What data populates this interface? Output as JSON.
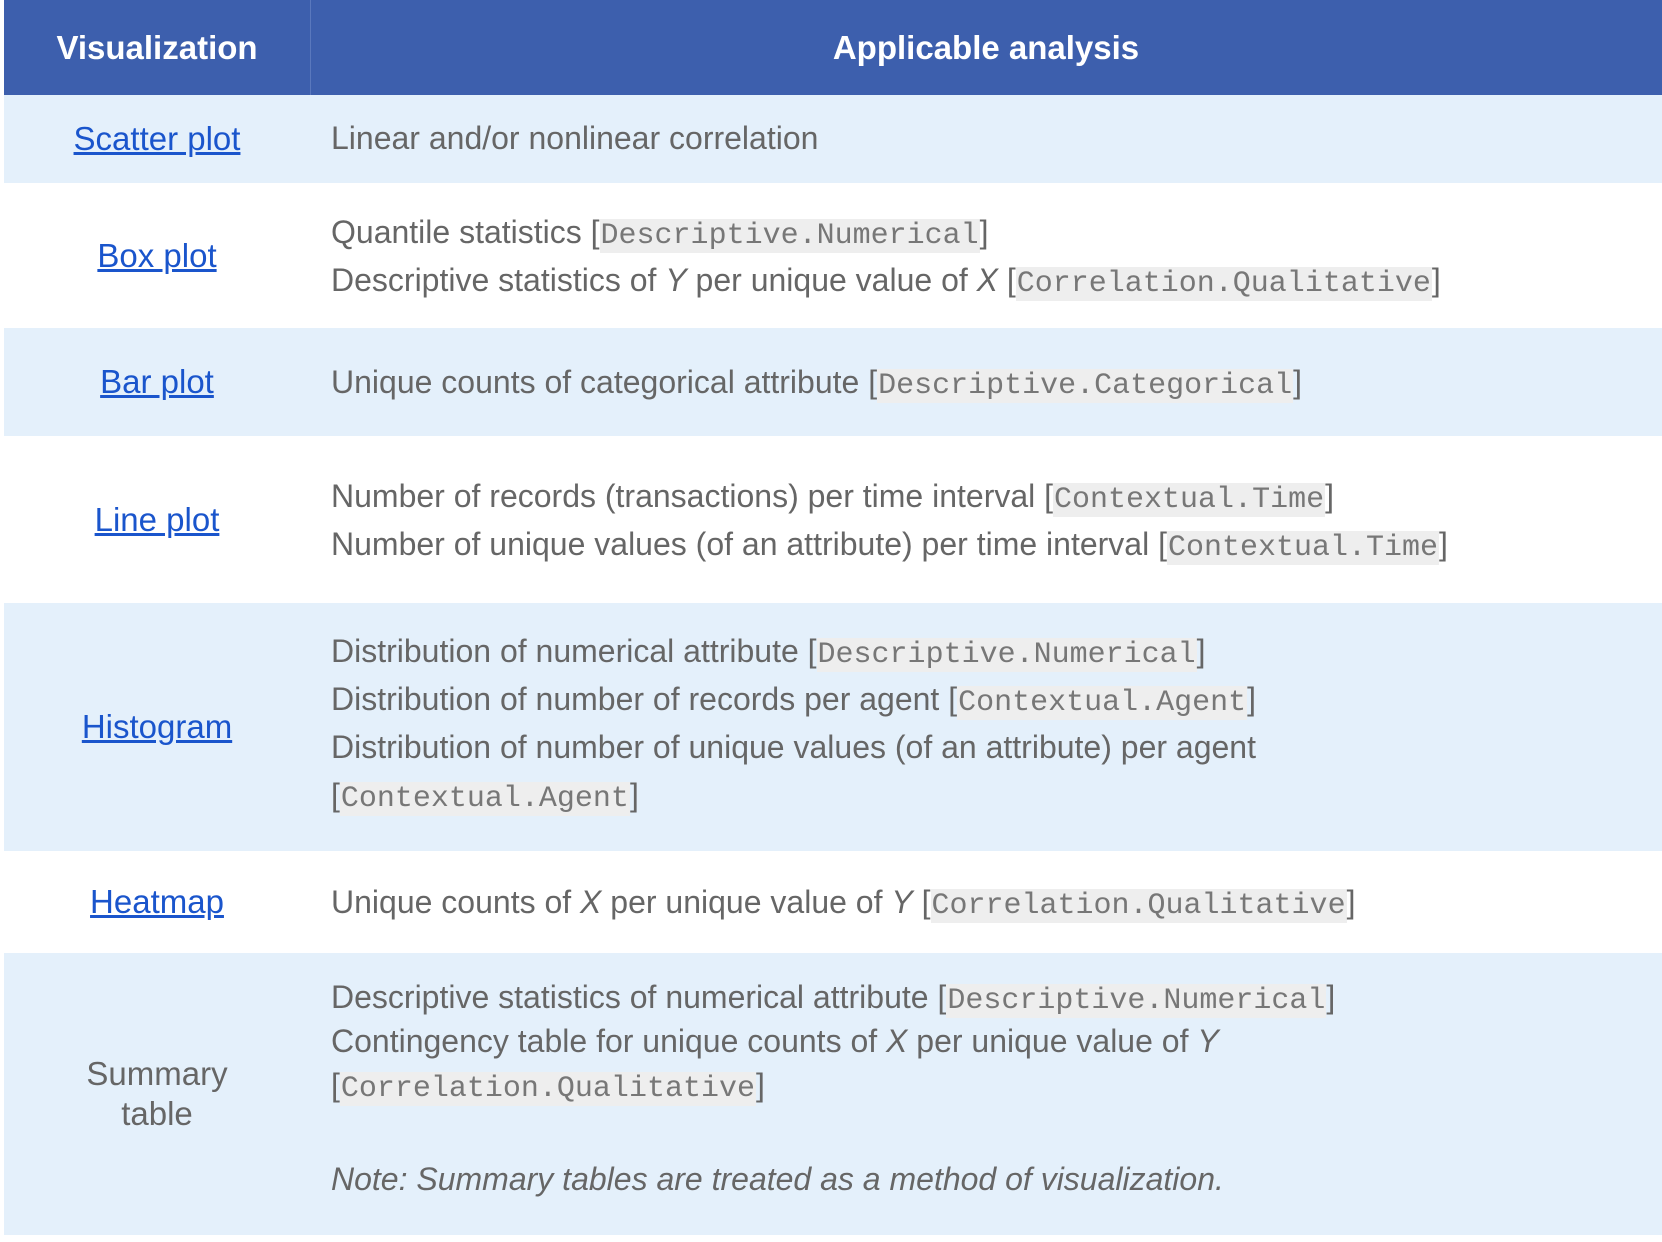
{
  "header": {
    "visualization": "Visualization",
    "analysis": "Applicable analysis"
  },
  "rows": [
    {
      "name": "Scatter plot",
      "lines": [
        {
          "text": "Linear and/or nonlinear correlation"
        }
      ]
    },
    {
      "name": "Box plot",
      "lines": [
        {
          "text": "Quantile statistics [",
          "code": "Descriptive.Numerical",
          "end": "]"
        },
        {
          "text": "Descriptive statistics of Y per unique value of X [",
          "code": "Correlation.Qualitative",
          "end": "]"
        }
      ]
    },
    {
      "name": "Bar plot",
      "lines": [
        {
          "text": "Unique counts of categorical attribute [",
          "code": "Descriptive.Categorical",
          "end": "]"
        }
      ]
    },
    {
      "name": "Line plot",
      "lines": [
        {
          "text": "Number of records (transactions) per time interval [",
          "code": "Contextual.Time",
          "end": "]"
        },
        {
          "text": "Number of unique values (of an attribute) per time interval [",
          "code": "Contextual.Time",
          "end": "]"
        }
      ]
    },
    {
      "name": "Histogram",
      "lines": [
        {
          "text": "Distribution of numerical attribute [",
          "code": "Descriptive.Numerical",
          "end": "]"
        },
        {
          "text": "Distribution of number of records per agent [",
          "code": "Contextual.Agent",
          "end": "]"
        },
        {
          "text": "Distribution of number of unique values (of an attribute) per agent"
        },
        {
          "text": "[",
          "code": "Contextual.Agent",
          "end": "]"
        }
      ]
    },
    {
      "name": "Heatmap",
      "lines": [
        {
          "text": "Unique counts of X per unique value of Y [",
          "code": "Correlation.Qualitative",
          "end": "]"
        }
      ]
    },
    {
      "name": "Summary\ntable",
      "lines": [
        {
          "text": "Descriptive statistics of numerical attribute [",
          "code": "Descriptive.Numerical",
          "end": "]"
        },
        {
          "text": "Contingency table for unique counts of X per unique value of Y"
        },
        {
          "text": "[",
          "code": "Correlation.Qualitative",
          "end": "]"
        }
      ],
      "note": "Note: Summary tables are treated as a method of visualization."
    }
  ],
  "colors": {
    "header_bg": "#3d5fad",
    "shaded_row": "#e4f0fb",
    "link": "#1a55cc",
    "text": "#666666"
  }
}
